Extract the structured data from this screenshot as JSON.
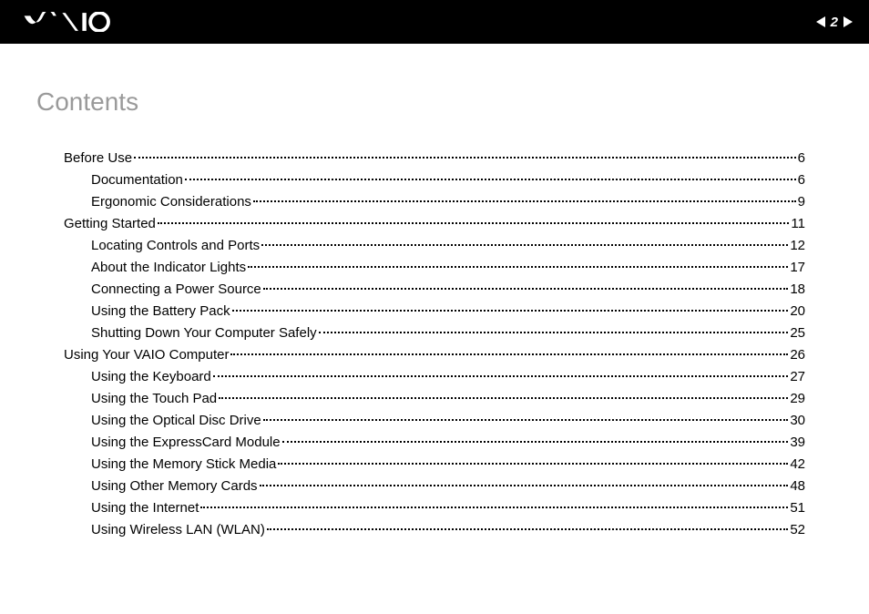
{
  "header": {
    "page_number": "2",
    "logo_alt": "VAIO"
  },
  "colors": {
    "header_bg": "#000000",
    "header_fg": "#ffffff",
    "page_bg": "#ffffff",
    "title_color": "#9a9a9a",
    "text_color": "#000000",
    "leader_color": "#000000"
  },
  "title": "Contents",
  "toc": [
    {
      "label": "Before Use",
      "page": "6",
      "level": 0
    },
    {
      "label": "Documentation",
      "page": "6",
      "level": 1
    },
    {
      "label": "Ergonomic Considerations",
      "page": "9",
      "level": 1
    },
    {
      "label": "Getting Started",
      "page": "11",
      "level": 0
    },
    {
      "label": "Locating Controls and Ports",
      "page": "12",
      "level": 1
    },
    {
      "label": "About the Indicator Lights",
      "page": "17",
      "level": 1
    },
    {
      "label": "Connecting a Power Source",
      "page": "18",
      "level": 1
    },
    {
      "label": "Using the Battery Pack",
      "page": "20",
      "level": 1
    },
    {
      "label": "Shutting Down Your Computer Safely",
      "page": "25",
      "level": 1
    },
    {
      "label": "Using Your VAIO Computer",
      "page": "26",
      "level": 0
    },
    {
      "label": "Using the Keyboard",
      "page": "27",
      "level": 1
    },
    {
      "label": "Using the Touch Pad",
      "page": "29",
      "level": 1
    },
    {
      "label": "Using the Optical Disc Drive",
      "page": "30",
      "level": 1
    },
    {
      "label": "Using the ExpressCard Module",
      "page": "39",
      "level": 1
    },
    {
      "label": "Using the Memory Stick Media",
      "page": "42",
      "level": 1
    },
    {
      "label": "Using Other Memory Cards",
      "page": "48",
      "level": 1
    },
    {
      "label": "Using the Internet",
      "page": "51",
      "level": 1
    },
    {
      "label": "Using Wireless LAN (WLAN)",
      "page": "52",
      "level": 1
    }
  ]
}
